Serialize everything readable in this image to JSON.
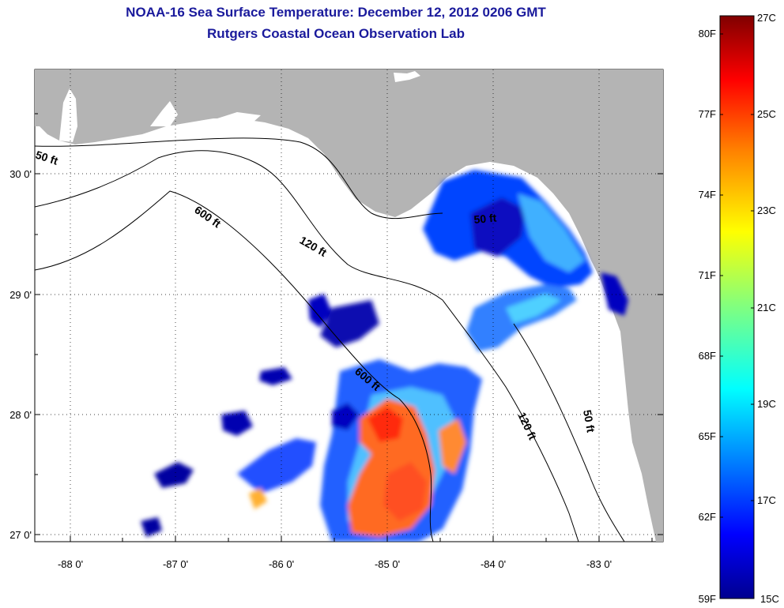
{
  "title": {
    "line1": "NOAA-16 Sea Surface Temperature:  December 12, 2012 0206 GMT",
    "line2": "Rutgers Coastal Ocean Observation Lab"
  },
  "axes": {
    "x_ticks": [
      "-88 0'",
      "-87 0'",
      "-86 0'",
      "-85 0'",
      "-84 0'",
      "-83 0'"
    ],
    "y_ticks": [
      "30 0'",
      "29 0'",
      "28 0'",
      "27 0'"
    ]
  },
  "contours": {
    "label_50ft": "50 ft",
    "label_120ft": "120 ft",
    "label_600ft": "600 ft"
  },
  "colorbar": {
    "fahrenheit": [
      "80F",
      "77F",
      "74F",
      "71F",
      "68F",
      "65F",
      "62F",
      "59F"
    ],
    "celsius": [
      "27C",
      "25C",
      "23C",
      "21C",
      "19C",
      "17C",
      "15C"
    ]
  },
  "colors": {
    "title": "#1a1a9c",
    "land": "#b4b4b4",
    "ocean": "#ffffff",
    "colormap": [
      "#00008f",
      "#0000ff",
      "#0080ff",
      "#00ffff",
      "#80ff80",
      "#ffff00",
      "#ff8000",
      "#ff0000",
      "#800000"
    ]
  }
}
